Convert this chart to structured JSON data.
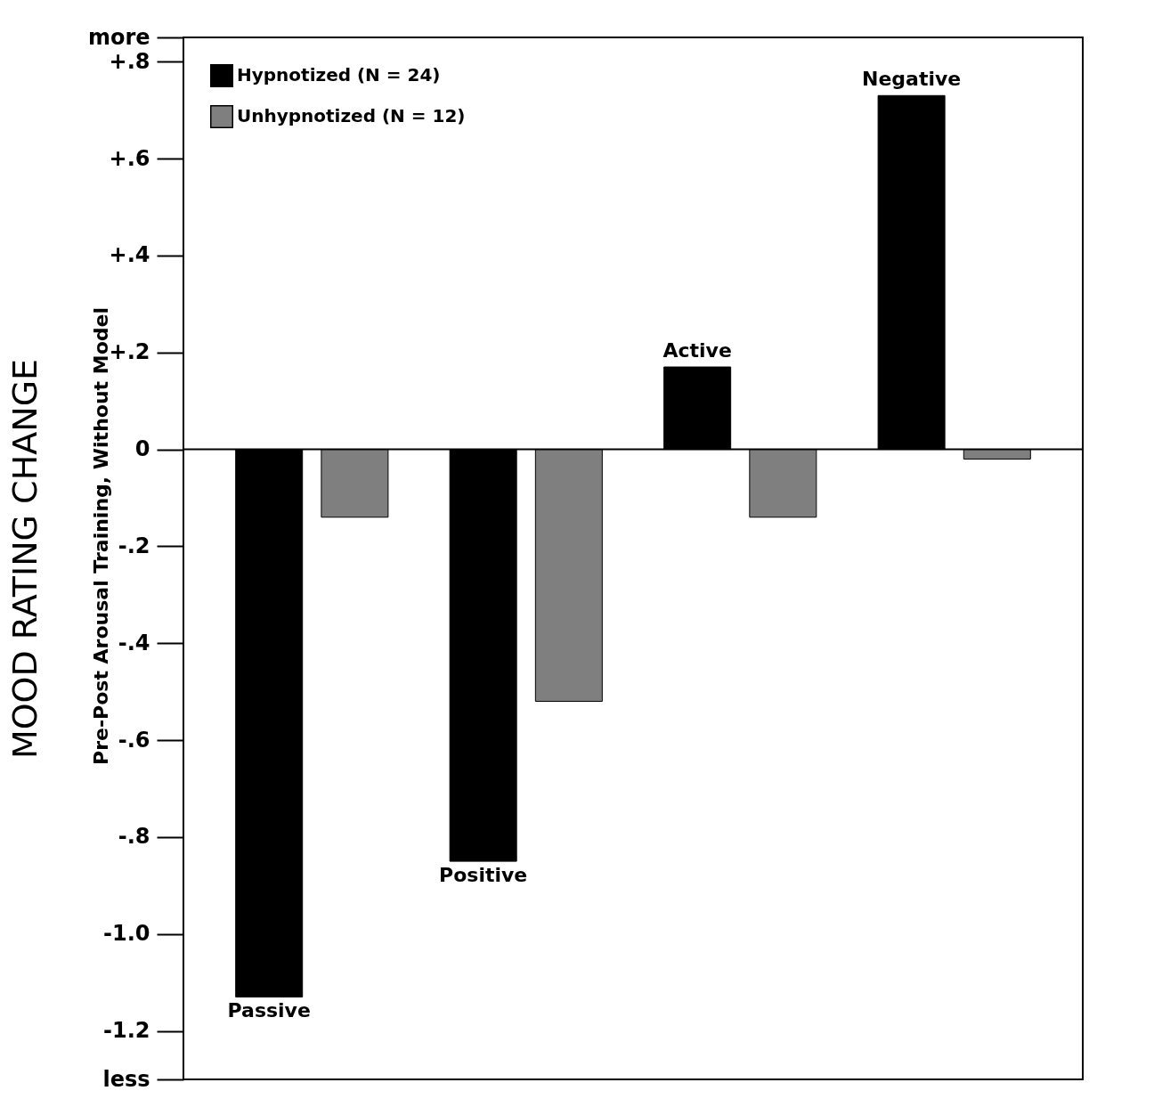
{
  "chart_data": {
    "type": "bar",
    "ylabel": "MOOD RATING CHANGE",
    "annotations": [
      "Pre-Post Arousal Training, Without Model"
    ],
    "categories": [
      "Passive",
      "Positive",
      "Active",
      "Negative"
    ],
    "series": [
      {
        "name": "Hypnotized (N = 24)",
        "color": "#000000",
        "values": [
          -1.13,
          -0.85,
          0.17,
          0.73
        ]
      },
      {
        "name": "Unhypnotized (N = 12)",
        "color": "#7f7f7f",
        "values": [
          -0.14,
          -0.52,
          -0.14,
          -0.02
        ]
      }
    ],
    "ylim": [
      -1.3,
      0.85
    ],
    "yticks": [
      {
        "value": -1.3,
        "label": "less"
      },
      {
        "value": -1.2,
        "label": "-1.2"
      },
      {
        "value": -1.0,
        "label": "-1.0"
      },
      {
        "value": -0.8,
        "label": "-.8"
      },
      {
        "value": -0.6,
        "label": "-.6"
      },
      {
        "value": -0.4,
        "label": "-.4"
      },
      {
        "value": -0.2,
        "label": "-.2"
      },
      {
        "value": 0,
        "label": "0"
      },
      {
        "value": 0.2,
        "label": "+.2"
      },
      {
        "value": 0.4,
        "label": "+.4"
      },
      {
        "value": 0.6,
        "label": "+.6"
      },
      {
        "value": 0.8,
        "label": "+.8"
      },
      {
        "value": 0.85,
        "label": "more"
      }
    ],
    "ref_lines": [
      {
        "axis": "y",
        "value": 0
      }
    ],
    "grid": false,
    "legend": "top left",
    "tick_labels": "y"
  }
}
